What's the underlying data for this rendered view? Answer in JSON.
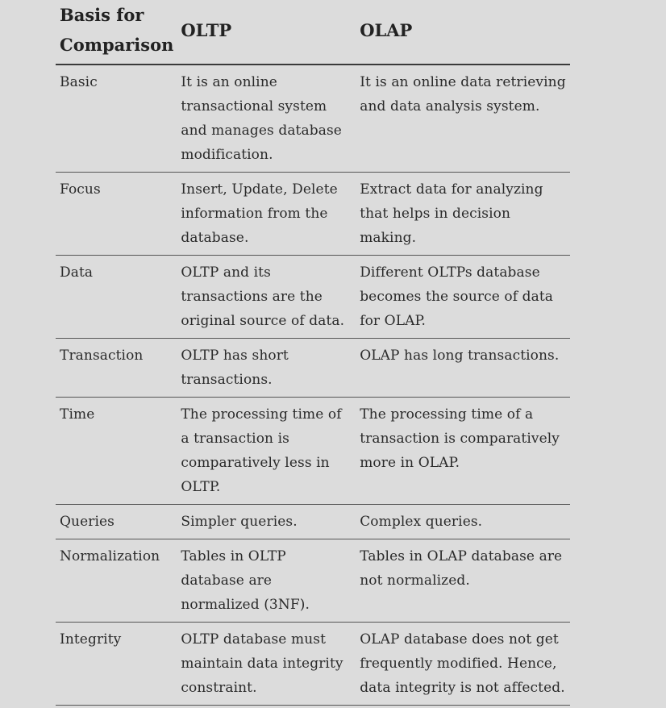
{
  "table": {
    "headers": [
      "Basis for Comparison",
      "OLTP",
      "OLAP"
    ],
    "rows": [
      {
        "basis": "Basic",
        "oltp": "It is an online transactional system and manages database modification.",
        "olap": "It is an online data retrieving and data analysis system."
      },
      {
        "basis": "Focus",
        "oltp": "Insert, Update, Delete information from the database.",
        "olap": "Extract data for analyzing that helps in decision making."
      },
      {
        "basis": "Data",
        "oltp": "OLTP and its transactions are the original source of data.",
        "olap": "Different OLTPs database becomes the source of data for OLAP."
      },
      {
        "basis": "Transaction",
        "oltp": "OLTP has short transactions.",
        "olap": "OLAP has long transactions."
      },
      {
        "basis": "Time",
        "oltp": "The processing time of a transaction is comparatively less in OLTP.",
        "olap": "The processing time of a transaction is comparatively more in OLAP."
      },
      {
        "basis": "Queries",
        "oltp": "Simpler queries.",
        "olap": "Complex queries."
      },
      {
        "basis": "Normalization",
        "oltp": "Tables in OLTP database are normalized (3NF).",
        "olap": "Tables in OLAP database are not normalized."
      },
      {
        "basis": "Integrity",
        "oltp": "OLTP database must maintain data integrity constraint.",
        "olap": "OLAP database does not get frequently modified. Hence, data integrity is not affected."
      }
    ]
  }
}
